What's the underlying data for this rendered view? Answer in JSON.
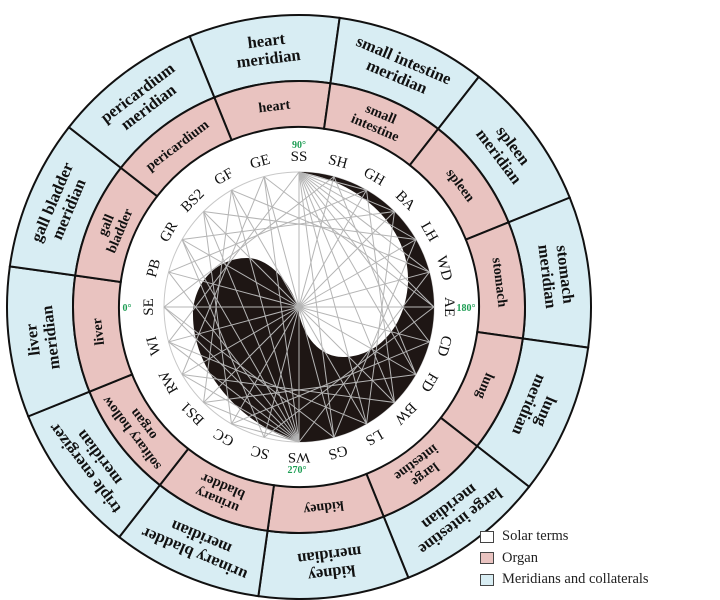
{
  "colors": {
    "organ": "#e9c3c0",
    "meridian": "#d8edf3",
    "solar": "#ffffff",
    "taiji": "#1e1614",
    "lines": "#b5b5b5",
    "degree": "#1f9e55"
  },
  "sectors": [
    {
      "organ": [
        "heart"
      ],
      "meridian": [
        "heart",
        "meridian"
      ]
    },
    {
      "organ": [
        "small",
        "intestine"
      ],
      "meridian": [
        "small intestine",
        "meridian"
      ]
    },
    {
      "organ": [
        "spleen"
      ],
      "meridian": [
        "spleen",
        "meridian"
      ]
    },
    {
      "organ": [
        "stomach"
      ],
      "meridian": [
        "stomach",
        "meridian"
      ]
    },
    {
      "organ": [
        "lung"
      ],
      "meridian": [
        "lung",
        "meridian"
      ]
    },
    {
      "organ": [
        "large",
        "intestine"
      ],
      "meridian": [
        "large intestine",
        "meridian"
      ]
    },
    {
      "organ": [
        "kidney"
      ],
      "meridian": [
        "kidney",
        "meridian"
      ]
    },
    {
      "organ": [
        "urinary",
        "bladder"
      ],
      "meridian": [
        "urinary bladder",
        "meridian"
      ]
    },
    {
      "organ": [
        "solitary hollow",
        "organ"
      ],
      "meridian": [
        "triple energizer",
        "meridian"
      ]
    },
    {
      "organ": [
        "liver"
      ],
      "meridian": [
        "liver",
        "meridian"
      ]
    },
    {
      "organ": [
        "gall",
        "bladder"
      ],
      "meridian": [
        "gall bladder",
        "meridian"
      ]
    },
    {
      "organ": [
        "pericardium"
      ],
      "meridian": [
        "pericardium",
        "meridian"
      ]
    }
  ],
  "solar_terms": [
    "SS",
    "SH",
    "GH",
    "BA",
    "LH",
    "WD",
    "AE",
    "CD",
    "FD",
    "BW",
    "LS",
    "GS",
    "WS",
    "SC",
    "GC",
    "BS1",
    "RW",
    "WI",
    "SE",
    "PB",
    "GR",
    "BS2",
    "GF",
    "GE"
  ],
  "degrees": {
    "top": "90°",
    "right": "180°",
    "bottom": "270°",
    "left": "0°"
  },
  "legend": [
    {
      "label": "Solar terms",
      "color": "#ffffff"
    },
    {
      "label": "Organ",
      "color": "#e9c3c0"
    },
    {
      "label": "Meridians and collaterals",
      "color": "#d8edf3"
    }
  ]
}
